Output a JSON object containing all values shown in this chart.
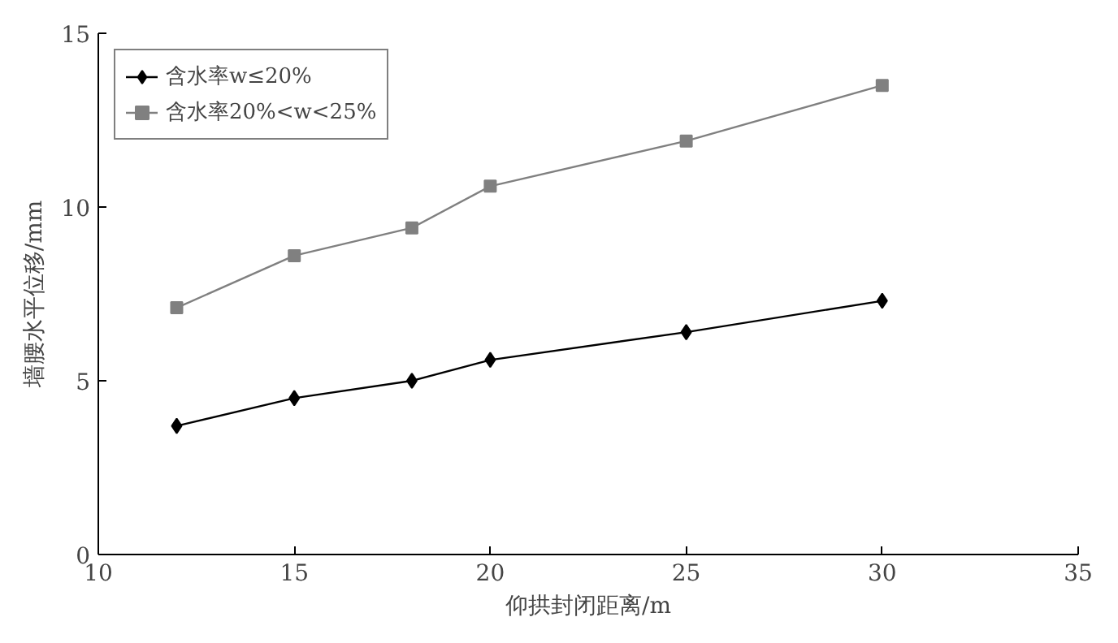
{
  "chart_data": {
    "type": "line",
    "xlabel": "仰拱封闭距离/m",
    "ylabel": "墙腰水平位移/mm",
    "x": [
      12,
      15,
      18,
      20,
      25,
      30
    ],
    "series": [
      {
        "name": "含水率w≤20%",
        "color": "#000000",
        "marker": "diamond",
        "values": [
          3.7,
          4.5,
          5.0,
          5.6,
          6.4,
          7.3
        ]
      },
      {
        "name": "含水率20%<w<25%",
        "color": "#808080",
        "marker": "square",
        "values": [
          7.1,
          8.6,
          9.4,
          10.6,
          11.9,
          13.5
        ]
      }
    ],
    "xlim": [
      10,
      35
    ],
    "xticks": [
      10,
      15,
      20,
      25,
      30,
      35
    ],
    "ylim": [
      0,
      15
    ],
    "yticks": [
      0,
      5,
      10,
      15
    ],
    "grid": false,
    "legend": "top left",
    "line_style": "solid"
  }
}
